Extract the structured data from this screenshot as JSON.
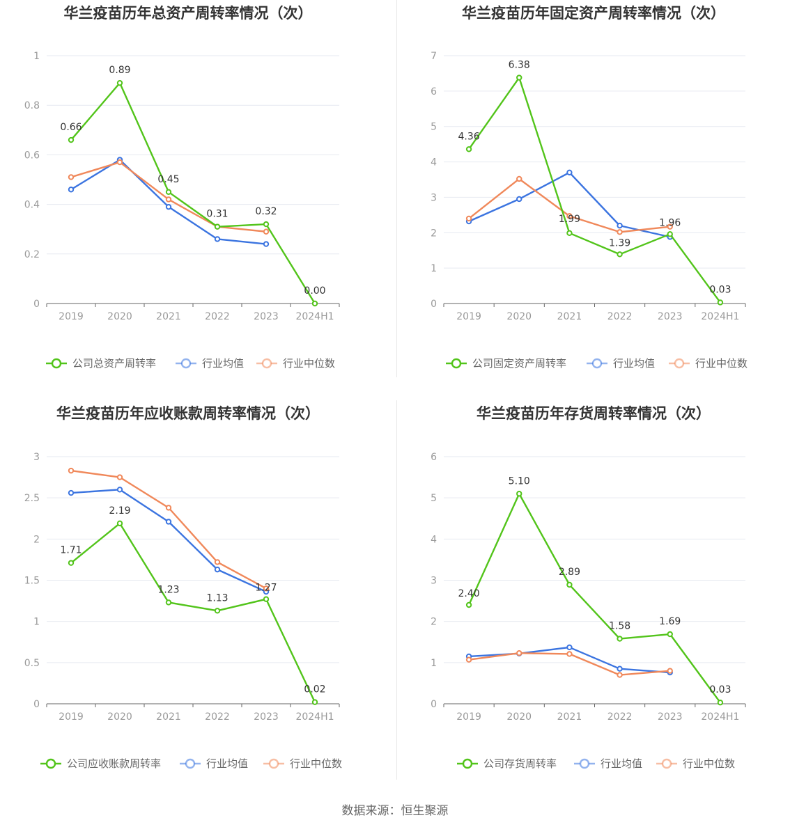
{
  "source_text": "数据来源：恒生聚源",
  "colors": {
    "company": "#52c41a",
    "avg": "#3b74e0",
    "median": "#f0885a"
  },
  "chart_data": [
    {
      "type": "line",
      "title": "华兰疫苗历年总资产周转率情况（次）",
      "categories": [
        "2019",
        "2020",
        "2021",
        "2022",
        "2023",
        "2024H1"
      ],
      "ylim": [
        0,
        1
      ],
      "yticks": [
        0,
        0.2,
        0.4,
        0.6,
        0.8,
        1
      ],
      "ytick_labels": [
        "0",
        "0.2",
        "0.4",
        "0.6",
        "0.8",
        "1"
      ],
      "series": [
        {
          "name": "公司总资产周转率",
          "key": "company",
          "values": [
            0.66,
            0.89,
            0.45,
            0.31,
            0.32,
            0.0
          ],
          "labels": [
            "0.66",
            "0.89",
            "0.45",
            "0.31",
            "0.32",
            "0.00"
          ]
        },
        {
          "name": "行业均值",
          "key": "avg",
          "values": [
            0.46,
            0.58,
            0.39,
            0.26,
            0.24,
            null
          ]
        },
        {
          "name": "行业中位数",
          "key": "median",
          "values": [
            0.51,
            0.57,
            0.42,
            0.31,
            0.29,
            null
          ]
        }
      ]
    },
    {
      "type": "line",
      "title": "华兰疫苗历年固定资产周转率情况（次）",
      "categories": [
        "2019",
        "2020",
        "2021",
        "2022",
        "2023",
        "2024H1"
      ],
      "ylim": [
        0,
        7
      ],
      "yticks": [
        0,
        1,
        2,
        3,
        4,
        5,
        6,
        7
      ],
      "ytick_labels": [
        "0",
        "1",
        "2",
        "3",
        "4",
        "5",
        "6",
        "7"
      ],
      "series": [
        {
          "name": "公司固定资产周转率",
          "key": "company",
          "values": [
            4.36,
            6.38,
            1.99,
            1.39,
            1.96,
            0.03
          ],
          "labels": [
            "4.36",
            "6.38",
            "1.99",
            "1.39",
            "1.96",
            "0.03"
          ]
        },
        {
          "name": "行业均值",
          "key": "avg",
          "values": [
            2.32,
            2.95,
            3.7,
            2.2,
            1.88,
            null
          ]
        },
        {
          "name": "行业中位数",
          "key": "median",
          "values": [
            2.4,
            3.52,
            2.47,
            2.02,
            2.17,
            null
          ]
        }
      ]
    },
    {
      "type": "line",
      "title": "华兰疫苗历年应收账款周转率情况（次）",
      "categories": [
        "2019",
        "2020",
        "2021",
        "2022",
        "2023",
        "2024H1"
      ],
      "ylim": [
        0,
        3
      ],
      "yticks": [
        0,
        0.5,
        1,
        1.5,
        2,
        2.5,
        3
      ],
      "ytick_labels": [
        "0",
        "0.5",
        "1",
        "1.5",
        "2",
        "2.5",
        "3"
      ],
      "series": [
        {
          "name": "公司应收账款周转率",
          "key": "company",
          "values": [
            1.71,
            2.19,
            1.23,
            1.13,
            1.27,
            0.02
          ],
          "labels": [
            "1.71",
            "2.19",
            "1.23",
            "1.13",
            "1.27",
            "0.02"
          ]
        },
        {
          "name": "行业均值",
          "key": "avg",
          "values": [
            2.56,
            2.6,
            2.21,
            1.63,
            1.36,
            null
          ]
        },
        {
          "name": "行业中位数",
          "key": "median",
          "values": [
            2.83,
            2.75,
            2.38,
            1.72,
            1.4,
            null
          ]
        }
      ]
    },
    {
      "type": "line",
      "title": "华兰疫苗历年存货周转率情况（次）",
      "categories": [
        "2019",
        "2020",
        "2021",
        "2022",
        "2023",
        "2024H1"
      ],
      "ylim": [
        0,
        6
      ],
      "yticks": [
        0,
        1,
        2,
        3,
        4,
        5,
        6
      ],
      "ytick_labels": [
        "0",
        "1",
        "2",
        "3",
        "4",
        "5",
        "6"
      ],
      "series": [
        {
          "name": "公司存货周转率",
          "key": "company",
          "values": [
            2.4,
            5.1,
            2.89,
            1.58,
            1.69,
            0.03
          ],
          "labels": [
            "2.40",
            "5.10",
            "2.89",
            "1.58",
            "1.69",
            "0.03"
          ]
        },
        {
          "name": "行业均值",
          "key": "avg",
          "values": [
            1.15,
            1.22,
            1.37,
            0.85,
            0.76,
            null
          ]
        },
        {
          "name": "行业中位数",
          "key": "median",
          "values": [
            1.07,
            1.23,
            1.21,
            0.7,
            0.8,
            null
          ]
        }
      ]
    }
  ]
}
